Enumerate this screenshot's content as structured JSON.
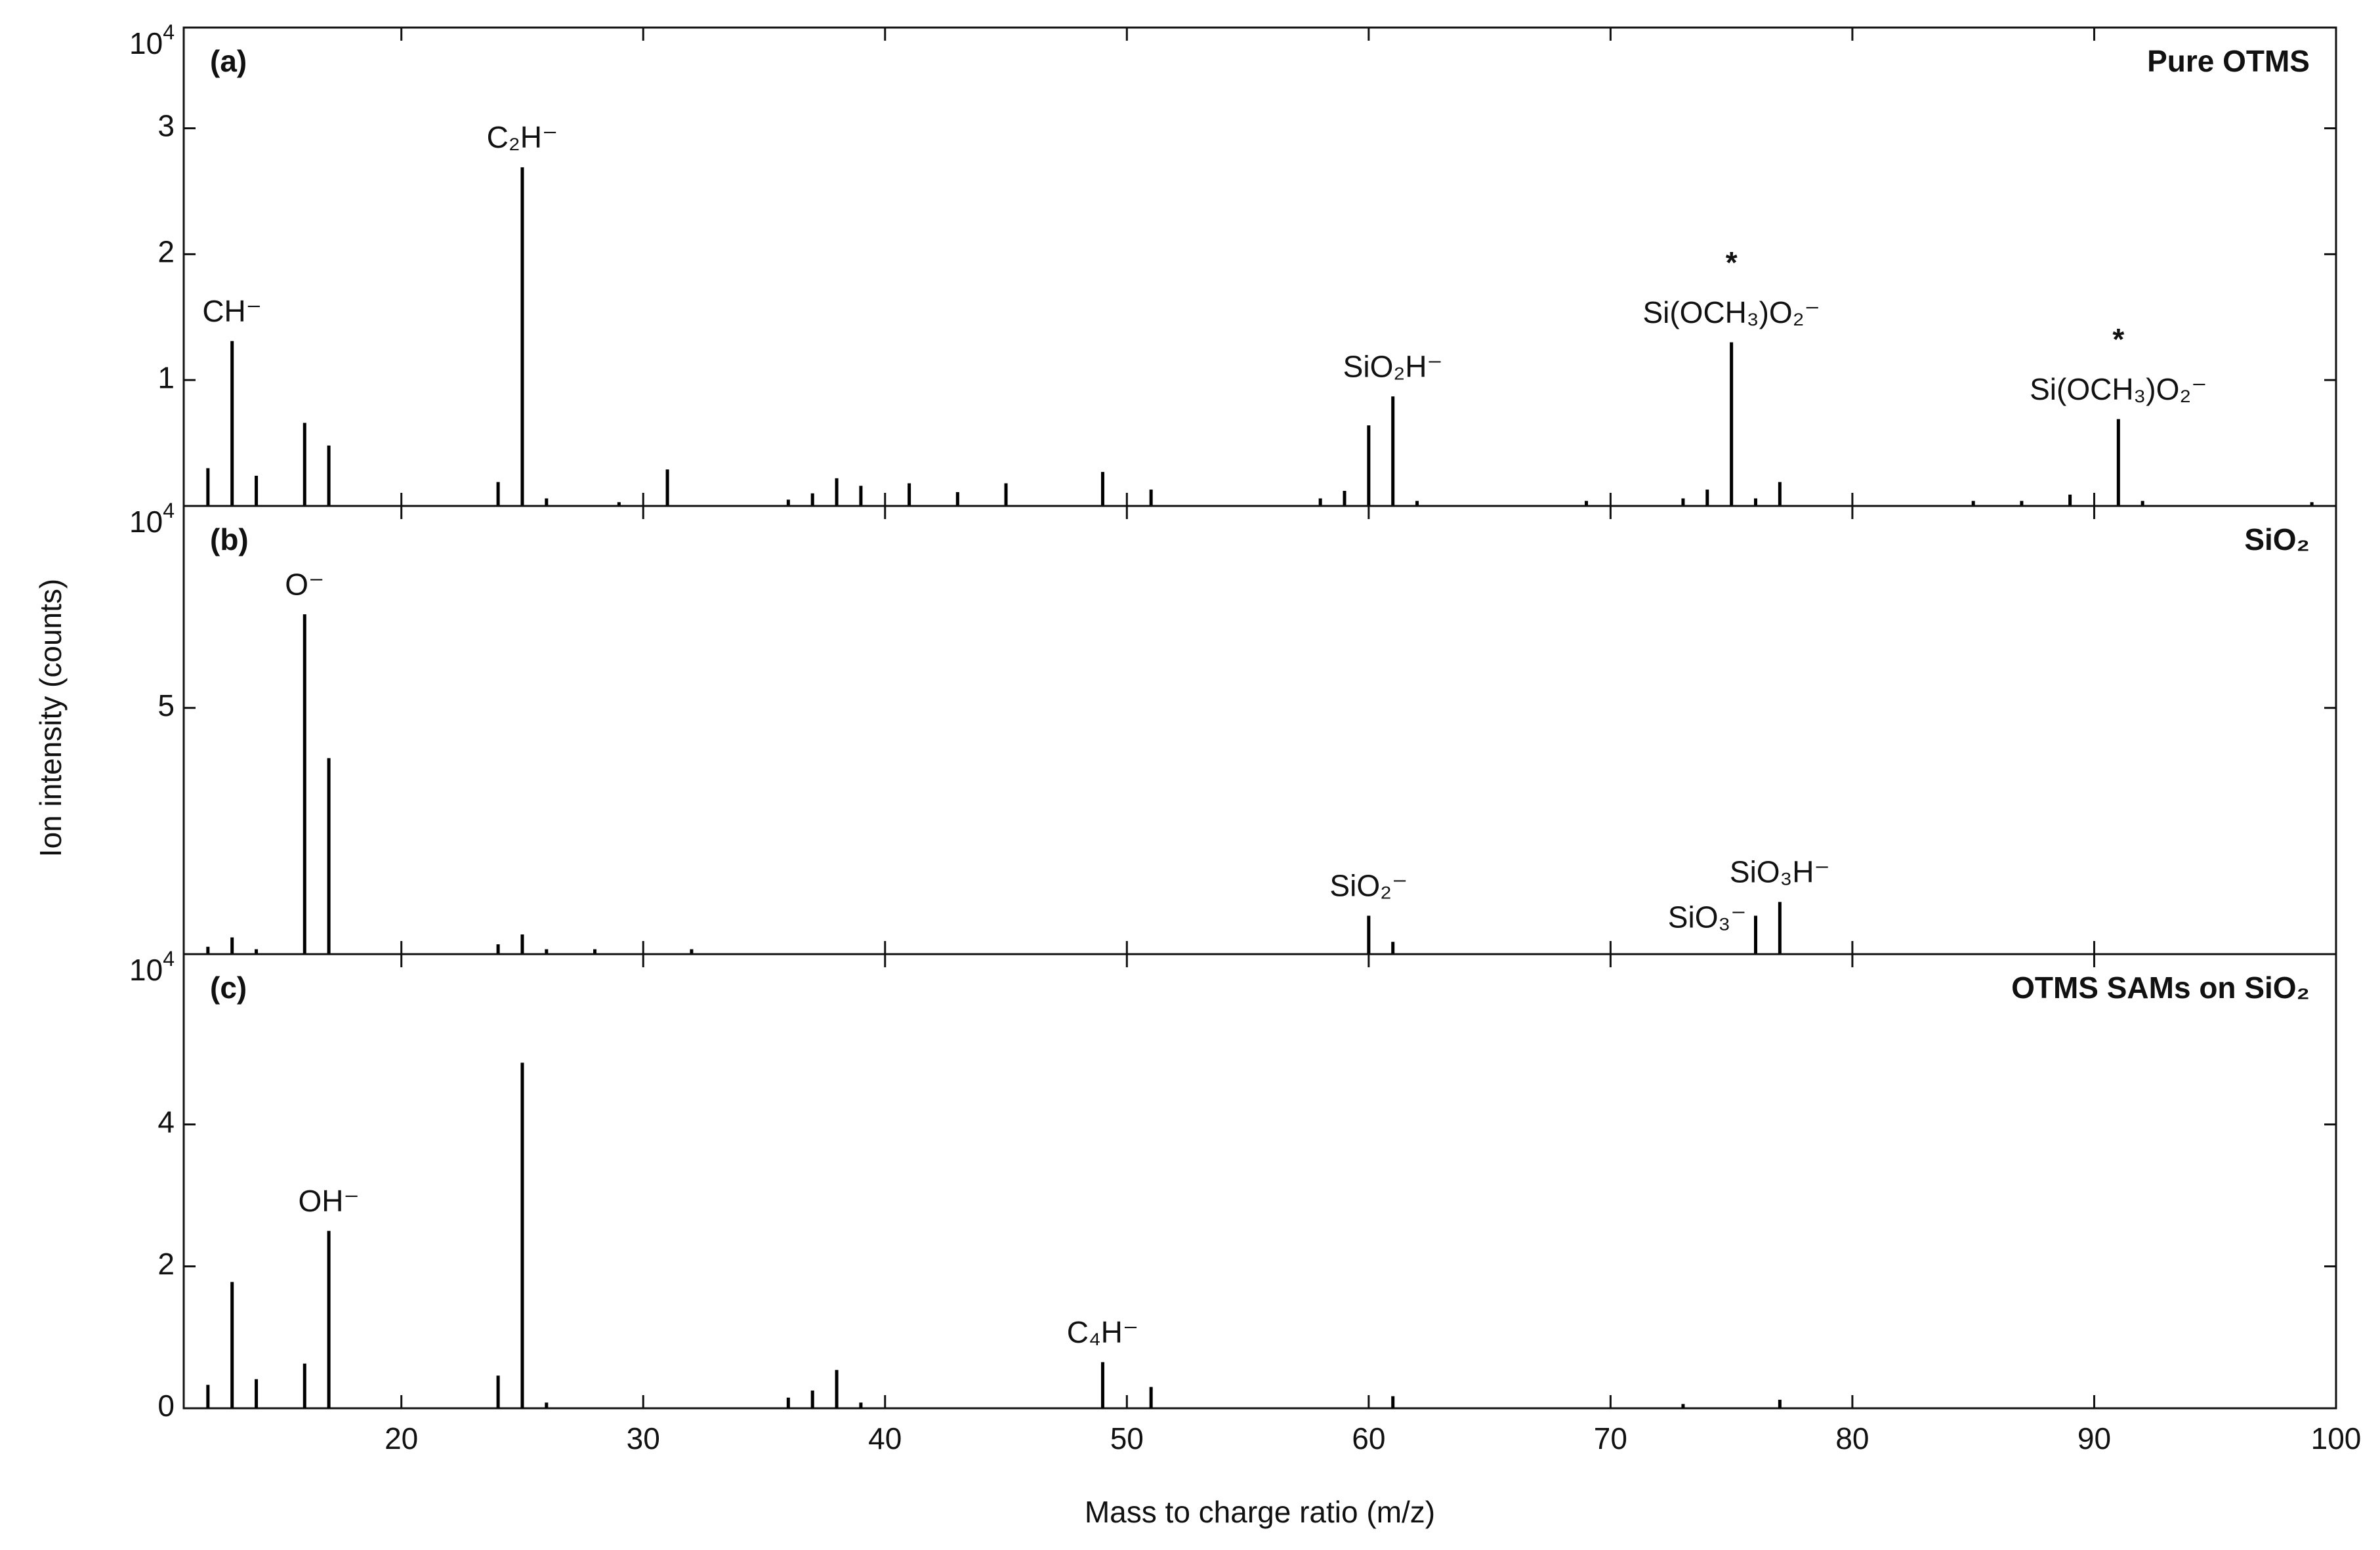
{
  "y_label": "Ion intensity (counts)",
  "x_label": "Mass to charge ratio (m/z)",
  "chart_data": [
    {
      "type": "bar",
      "label": "(a)",
      "title": "Pure OTMS",
      "title_color": "#1010f0",
      "color": "#000000",
      "x": [
        12,
        13,
        14,
        16,
        17,
        24,
        25,
        26,
        29,
        31,
        36,
        37,
        38,
        39,
        41,
        43,
        45,
        49,
        51,
        58,
        59,
        60,
        61,
        62,
        69,
        73,
        74,
        75,
        76,
        77,
        85,
        87,
        89,
        91,
        92,
        99
      ],
      "values": [
        0.3,
        1.31,
        0.24,
        0.66,
        0.48,
        0.19,
        2.69,
        0.06,
        0.03,
        0.29,
        0.05,
        0.1,
        0.22,
        0.16,
        0.18,
        0.11,
        0.18,
        0.27,
        0.13,
        0.06,
        0.12,
        0.64,
        0.87,
        0.04,
        0.04,
        0.06,
        0.13,
        1.3,
        0.06,
        0.19,
        0.04,
        0.04,
        0.09,
        0.69,
        0.04,
        0.03
      ],
      "xlim": [
        11,
        100
      ],
      "xticks": [
        20,
        30,
        40,
        50,
        60,
        70,
        80,
        90,
        100
      ],
      "ylim": [
        0,
        3.8
      ],
      "yticks": [
        1,
        2,
        3
      ],
      "y_multiplier": {
        "base": "10",
        "exponent": "4"
      },
      "annotations": [
        {
          "text": "CH⁻",
          "x": 13
        },
        {
          "text": "C₂H⁻",
          "x": 25
        },
        {
          "text": "SiO₂H⁻",
          "x": 61
        },
        {
          "text": "Si(OCH₃)O₂⁻",
          "x": 75
        },
        {
          "text": "*",
          "x": 75,
          "color": "#1010f0"
        },
        {
          "text": "Si(OCH₃)O₂⁻",
          "x": 91
        },
        {
          "text": "*",
          "x": 91,
          "color": "#1010f0"
        }
      ]
    },
    {
      "type": "bar",
      "label": "(b)",
      "title": "SiO₂",
      "title_color": "#108010",
      "color": "#000000",
      "x": [
        12,
        13,
        14,
        16,
        17,
        24,
        25,
        26,
        28,
        32,
        60,
        61,
        76,
        77
      ],
      "values": [
        0.15,
        0.34,
        0.1,
        6.9,
        3.98,
        0.2,
        0.4,
        0.1,
        0.1,
        0.1,
        0.78,
        0.25,
        0.78,
        1.06
      ],
      "xlim": [
        11,
        100
      ],
      "xticks": [
        20,
        30,
        40,
        50,
        60,
        70,
        80,
        90,
        100
      ],
      "ylim": [
        0,
        9.1
      ],
      "yticks": [
        5
      ],
      "y_multiplier": {
        "base": "10",
        "exponent": "4"
      },
      "annotations": [
        {
          "text": "O⁻",
          "x": 16
        },
        {
          "text": "SiO₂⁻",
          "x": 60
        },
        {
          "text": "SiO₃⁻",
          "x": 76,
          "align": "left"
        },
        {
          "text": "SiO₃H⁻",
          "x": 77
        }
      ]
    },
    {
      "type": "bar",
      "label": "(c)",
      "title": "OTMS SAMs on SiO₂",
      "title_color": "#f01010",
      "color": "#000000",
      "x": [
        12,
        13,
        14,
        16,
        17,
        24,
        25,
        26,
        36,
        37,
        38,
        39,
        49,
        51,
        61,
        73,
        77
      ],
      "values": [
        0.33,
        1.78,
        0.41,
        0.63,
        2.5,
        0.46,
        4.87,
        0.08,
        0.15,
        0.25,
        0.54,
        0.08,
        0.65,
        0.3,
        0.17,
        0.06,
        0.12
      ],
      "xlim": [
        11,
        100
      ],
      "xticks": [
        20,
        30,
        40,
        50,
        60,
        70,
        80,
        90,
        100
      ],
      "ylim": [
        0,
        6.4
      ],
      "yticks": [
        0,
        2,
        4
      ],
      "y_multiplier": {
        "base": "10",
        "exponent": "4"
      },
      "annotations": [
        {
          "text": "OH⁻",
          "x": 17
        },
        {
          "text": "C₄H⁻",
          "x": 49
        }
      ]
    }
  ]
}
